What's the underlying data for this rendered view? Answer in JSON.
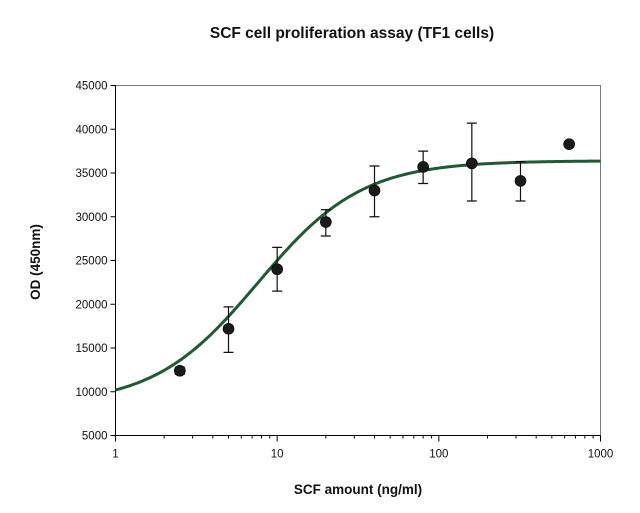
{
  "chart_data": {
    "type": "scatter",
    "title": "SCF cell proliferation assay (TF1 cells)",
    "xlabel": "SCF amount (ng/ml)",
    "ylabel": "OD (450nm)",
    "xscale": "log",
    "xlim": [
      1,
      1000
    ],
    "ylim": [
      5000,
      45000
    ],
    "x_ticks": [
      1,
      10,
      100,
      1000
    ],
    "x_tick_labels": [
      "1",
      "10",
      "100",
      "1000"
    ],
    "y_ticks": [
      5000,
      10000,
      15000,
      20000,
      25000,
      30000,
      35000,
      40000,
      45000
    ],
    "y_tick_labels": [
      "5000",
      "10000",
      "15000",
      "20000",
      "25000",
      "30000",
      "35000",
      "40000",
      "45000"
    ],
    "grid": false,
    "points": [
      {
        "x": 2.5,
        "y": 12400,
        "err_low": 12000,
        "err_high": 12800
      },
      {
        "x": 5,
        "y": 17200,
        "err_low": 14500,
        "err_high": 19700
      },
      {
        "x": 10,
        "y": 24000,
        "err_low": 21500,
        "err_high": 26500
      },
      {
        "x": 20,
        "y": 29400,
        "err_low": 27800,
        "err_high": 30800
      },
      {
        "x": 40,
        "y": 33000,
        "err_low": 30000,
        "err_high": 35800
      },
      {
        "x": 80,
        "y": 35700,
        "err_low": 33800,
        "err_high": 37500
      },
      {
        "x": 160,
        "y": 36100,
        "err_low": 31800,
        "err_high": 40700
      },
      {
        "x": 320,
        "y": 34100,
        "err_low": 31800,
        "err_high": 36300
      },
      {
        "x": 640,
        "y": 38300,
        "err_low": 38000,
        "err_high": 38600
      }
    ],
    "fit_curve": {
      "bottom": 8500,
      "top": 36400,
      "ec50": 7.6,
      "hill": 1.35
    },
    "colors": {
      "fit_line": "#1e5a32",
      "points": "#1b1b1b"
    }
  }
}
